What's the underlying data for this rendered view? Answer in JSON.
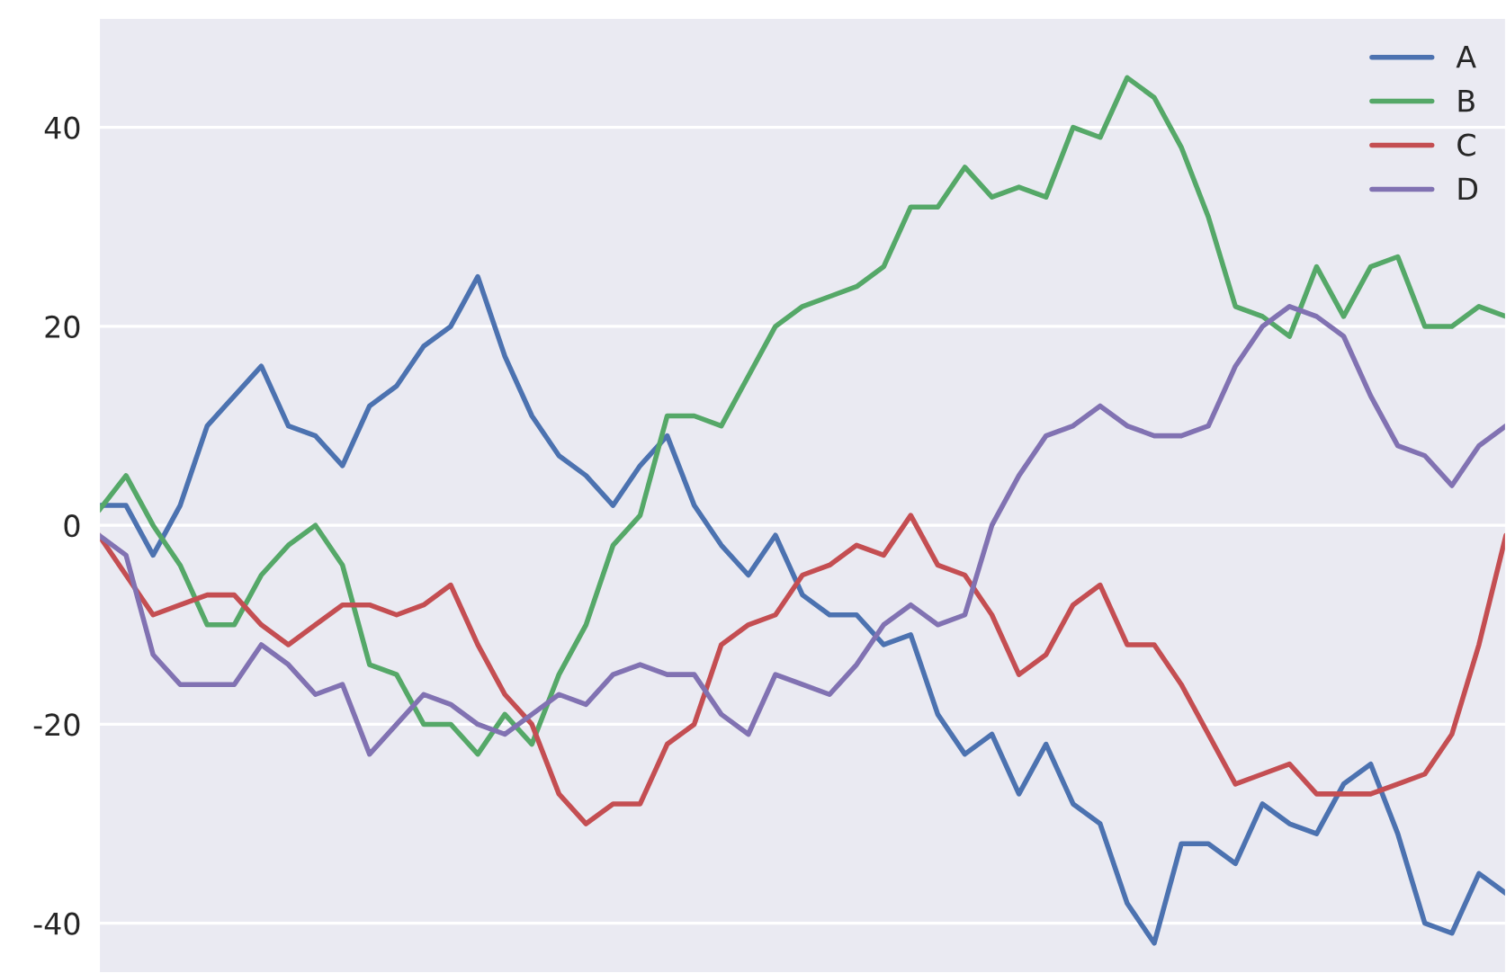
{
  "chart_data": {
    "type": "line",
    "categories": [
      null,
      null,
      null,
      null,
      null,
      null,
      null,
      null,
      null,
      null,
      null,
      null,
      null,
      null,
      null,
      null,
      null,
      null,
      null,
      null,
      null,
      null,
      null,
      null,
      null,
      null,
      null,
      null,
      null,
      null,
      null,
      null,
      null,
      null,
      null,
      null,
      null,
      null,
      null,
      null,
      null,
      null,
      null,
      null,
      null,
      null,
      null,
      null,
      null,
      null,
      null,
      null,
      null
    ],
    "series": [
      {
        "name": "A",
        "color": "#4c72b0",
        "values": [
          2,
          2,
          -3,
          2,
          10,
          13,
          16,
          10,
          9,
          6,
          12,
          14,
          18,
          20,
          25,
          17,
          11,
          7,
          5,
          2,
          6,
          9,
          2,
          -2,
          -5,
          -1,
          -7,
          -9,
          -9,
          -12,
          -11,
          -19,
          -23,
          -21,
          -27,
          -22,
          -28,
          -30,
          -38,
          -42,
          -32,
          -32,
          -34,
          -28,
          -30,
          -31,
          -26,
          -24,
          -31,
          -40,
          -41,
          -35,
          -37
        ]
      },
      {
        "name": "B",
        "color": "#55a868",
        "values": [
          1.5,
          5,
          0,
          -4,
          -10,
          -10,
          -5,
          -2,
          0,
          -4,
          -14,
          -15,
          -20,
          -20,
          -23,
          -19,
          -22,
          -15,
          -10,
          -2,
          1,
          11,
          11,
          10,
          15,
          20,
          22,
          23,
          24,
          26,
          32,
          32,
          36,
          33,
          34,
          33,
          40,
          39,
          45,
          43,
          38,
          31,
          22,
          21,
          19,
          26,
          21,
          26,
          27,
          20,
          20,
          22,
          21
        ]
      },
      {
        "name": "C",
        "color": "#c44e52",
        "values": [
          -1,
          -5,
          -9,
          -8,
          -7,
          -7,
          -10,
          -12,
          -10,
          -8,
          -8,
          -9,
          -8,
          -6,
          -12,
          -17,
          -20,
          -27,
          -30,
          -28,
          -28,
          -22,
          -20,
          -12,
          -10,
          -9,
          -5,
          -4,
          -2,
          -3,
          1,
          -4,
          -5,
          -9,
          -15,
          -13,
          -8,
          -6,
          -12,
          -12,
          -16,
          -21,
          -26,
          -25,
          -24,
          -27,
          -27,
          -27,
          -26,
          -25,
          -21,
          -12,
          -1
        ]
      },
      {
        "name": "D",
        "color": "#8172b2",
        "values": [
          -1,
          -3,
          -13,
          -16,
          -16,
          -16,
          -12,
          -14,
          -17,
          -16,
          -23,
          -20,
          -17,
          -18,
          -20,
          -21,
          -19,
          -17,
          -18,
          -15,
          -14,
          -15,
          -15,
          -19,
          -21,
          -15,
          -16,
          -17,
          -14,
          -10,
          -8,
          -10,
          -9,
          0,
          5,
          9,
          10,
          12,
          10,
          9,
          9,
          10,
          16,
          20,
          22,
          21,
          19,
          13,
          8,
          7,
          4,
          8,
          10
        ]
      }
    ],
    "ylim": [
      -45,
      51
    ],
    "yticks": [
      -40,
      -20,
      0,
      20,
      40
    ],
    "grid": "y",
    "legend": "top right",
    "line_style": "solid"
  }
}
